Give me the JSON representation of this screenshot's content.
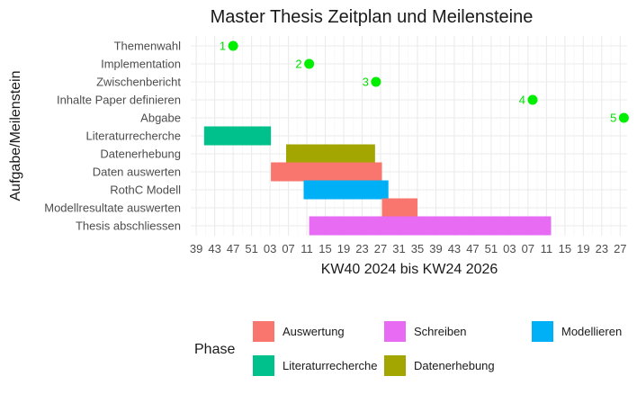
{
  "chart_data": {
    "type": "gantt",
    "title": "Master Thesis Zeitplan und Meilensteine",
    "xlabel": "KW40 2024 bis KW24 2026",
    "ylabel": "Aufgabe/Meilenstein",
    "x_unit": "week index (0 = KW40 2024)",
    "xlim": [
      -2.2,
      92.5
    ],
    "x_ticks": {
      "positions": [
        -1,
        3,
        7,
        11,
        15,
        19,
        23,
        27,
        31,
        35,
        39,
        43,
        47,
        51,
        55,
        59,
        63,
        67,
        71,
        75,
        79,
        83,
        87,
        91
      ],
      "labels": [
        "39",
        "43",
        "47",
        "51",
        "03",
        "07",
        "11",
        "15",
        "19",
        "23",
        "27",
        "31",
        "35",
        "39",
        "43",
        "47",
        "51",
        "03",
        "07",
        "11",
        "15",
        "19",
        "23",
        "27"
      ]
    },
    "tasks": [
      "Themenwahl",
      "Implementation",
      "Zwischenbericht",
      "Inhalte Paper definieren",
      "Abgabe",
      "Literaturrecherche",
      "Datenerhebung",
      "Daten auswerten",
      "RothC Modell",
      "Modellresultate auswerten",
      "Thesis abschliessen"
    ],
    "milestones": [
      {
        "task": "Themenwahl",
        "label": "1",
        "week": 7
      },
      {
        "task": "Implementation",
        "label": "2",
        "week": 23.5
      },
      {
        "task": "Zwischenbericht",
        "label": "3",
        "week": 38
      },
      {
        "task": "Inhalte Paper definieren",
        "label": "4",
        "week": 72
      },
      {
        "task": "Abgabe",
        "label": "5",
        "week": 91.8
      }
    ],
    "bars": [
      {
        "task": "Literaturrecherche",
        "phase": "Literaturrecherche",
        "start": 0.7,
        "end": 15.2
      },
      {
        "task": "Datenerhebung",
        "phase": "Datenerhebung",
        "start": 18.5,
        "end": 37.8
      },
      {
        "task": "Daten auswerten",
        "phase": "Auswertung",
        "start": 15.2,
        "end": 39.3
      },
      {
        "task": "RothC Modell",
        "phase": "Modellieren",
        "start": 22.3,
        "end": 40.7
      },
      {
        "task": "Modellresultate auswerten",
        "phase": "Auswertung",
        "start": 39.3,
        "end": 47.0
      },
      {
        "task": "Thesis abschliessen",
        "phase": "Schreiben",
        "start": 23.5,
        "end": 76.0
      }
    ],
    "grid": true,
    "legend": {
      "title": "Phase",
      "position": "bottom",
      "entries": [
        {
          "name": "Auswertung",
          "color": "#F8766D"
        },
        {
          "name": "Literaturrecherche",
          "color": "#00C08B"
        },
        {
          "name": "Schreiben",
          "color": "#E76BF3"
        },
        {
          "name": "Datenerhebung",
          "color": "#A3A500"
        },
        {
          "name": "Modellieren",
          "color": "#00B0F6"
        }
      ]
    },
    "milestone_color": "#00ee00"
  }
}
